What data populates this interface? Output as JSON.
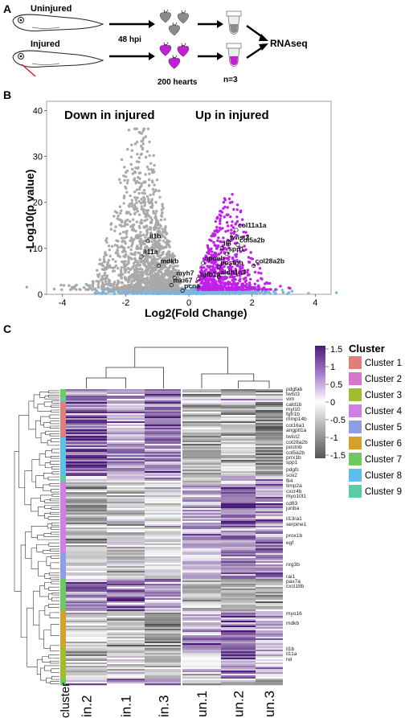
{
  "panels": {
    "a": "A",
    "b": "B",
    "c": "C"
  },
  "schematic": {
    "uninjured": "Uninjured",
    "injured": "Injured",
    "time": "48 hpi",
    "hearts": "200 hearts",
    "replicates": "n=3",
    "assay": "RNAseq",
    "colors": {
      "uninjured_heart": "#8a8a8a",
      "injured_heart": "#c21fd6",
      "arrow": "#000000",
      "injury": "#d0202a"
    }
  },
  "volcano": {
    "label_down": "Down in injured",
    "label_up": "Up in injured",
    "colors": {
      "down": "#a9a9a9",
      "up": "#c020e8",
      "ns": "#7fb3dc"
    },
    "chart_data": {
      "type": "scatter",
      "xlabel": "Log2(Fold Change)",
      "ylabel": "-Log10(p value)",
      "xlim": [
        -4.5,
        4.5
      ],
      "ylim": [
        0,
        42
      ],
      "xticks": [
        "-4",
        "-2",
        "0",
        "2",
        "4"
      ],
      "yticks": [
        "0",
        "10",
        "20",
        "30",
        "40"
      ],
      "labeled_genes": [
        {
          "name": "col11a1a",
          "x": 1.5,
          "y": 14.0
        },
        {
          "name": "twist2",
          "x": 1.25,
          "y": 11.4
        },
        {
          "name": "col5a2b",
          "x": 1.55,
          "y": 10.8
        },
        {
          "name": "il6",
          "x": 1.05,
          "y": 10.1
        },
        {
          "name": "spp1",
          "x": 1.2,
          "y": 8.8
        },
        {
          "name": "apoeb",
          "x": 0.45,
          "y": 6.8
        },
        {
          "name": "postnb",
          "x": 0.95,
          "y": 5.9
        },
        {
          "name": "col28a2b",
          "x": 2.05,
          "y": 6.2
        },
        {
          "name": "aldh1a3",
          "x": 0.95,
          "y": 3.8
        },
        {
          "name": "tgfb1a",
          "x": 0.3,
          "y": 3.3
        },
        {
          "name": "myh7",
          "x": -0.45,
          "y": 3.6
        },
        {
          "name": "mki67",
          "x": -0.55,
          "y": 2.0
        },
        {
          "name": "pcna",
          "x": -0.2,
          "y": 0.8
        },
        {
          "name": "mdkb",
          "x": -0.95,
          "y": 6.2
        },
        {
          "name": "il11a",
          "x": -1.5,
          "y": 8.2
        },
        {
          "name": "il1b",
          "x": -1.3,
          "y": 11.6
        }
      ]
    }
  },
  "heatmap": {
    "chart_data": {
      "type": "heatmap",
      "columns": [
        "in.2",
        "in.1",
        "in.3",
        "un.1",
        "un.2",
        "un.3"
      ],
      "row_annotation_label": "cluster",
      "genes": [
        "pdgfab",
        "twist3",
        "vim",
        "cald1b",
        "myl10",
        "fgfr1b",
        "mmp14b",
        "col16a1",
        "angptl1a",
        "twist2",
        "col28a2b",
        "postnb",
        "col5a2b",
        "prrx1b",
        "spp1",
        "pdgfc",
        "sox2",
        "fli4",
        "timp2a",
        "cxcr4b",
        "myo10l1",
        "cd83",
        "junba",
        "il13ra1",
        "serpine1",
        "prox1b",
        "egf",
        "nrg3b",
        "rai1",
        "pax7a",
        "cxcl18b",
        "myo16",
        "mdkb",
        "il1b",
        "il11a",
        "rel"
      ],
      "colorbar": {
        "ticks": [
          "1.5",
          "1",
          "0.5",
          "0",
          "-0.5",
          "-1",
          "-1.5"
        ],
        "high": "#4b1a78",
        "mid": "#ffffff",
        "low": "#555555"
      },
      "legend_title": "Cluster",
      "clusters": [
        {
          "name": "Cluster 1",
          "color": "#e07f78"
        },
        {
          "name": "Cluster 2",
          "color": "#d776d1"
        },
        {
          "name": "Cluster 3",
          "color": "#9fbd2c"
        },
        {
          "name": "Cluster 4",
          "color": "#d07ee8"
        },
        {
          "name": "Cluster 5",
          "color": "#8f9ce8"
        },
        {
          "name": "Cluster 6",
          "color": "#d3a22b"
        },
        {
          "name": "Cluster 7",
          "color": "#6ccb5c"
        },
        {
          "name": "Cluster 8",
          "color": "#5ac0ec"
        },
        {
          "name": "Cluster 9",
          "color": "#5ccaa4"
        }
      ]
    }
  }
}
